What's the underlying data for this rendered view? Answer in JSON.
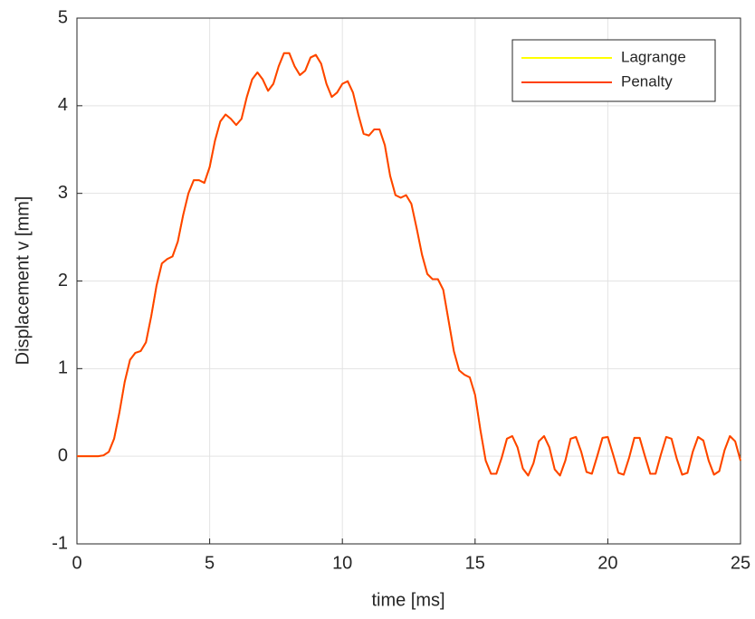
{
  "chart_data": {
    "type": "line",
    "xlabel": "time [ms]",
    "ylabel": "Displacement v [mm]",
    "xlim": [
      0,
      25
    ],
    "ylim": [
      -1,
      5
    ],
    "xticks": [
      0,
      5,
      10,
      15,
      20,
      25
    ],
    "yticks": [
      -1,
      0,
      1,
      2,
      3,
      4,
      5
    ],
    "grid": true,
    "legend": "upper right",
    "x": [
      0,
      0.2,
      0.4,
      0.6,
      0.8,
      1,
      1.2,
      1.4,
      1.6,
      1.8,
      2,
      2.2,
      2.4,
      2.6,
      2.8,
      3,
      3.2,
      3.4,
      3.6,
      3.8,
      4,
      4.2,
      4.4,
      4.6,
      4.8,
      5,
      5.2,
      5.4,
      5.6,
      5.8,
      6,
      6.2,
      6.4,
      6.6,
      6.8,
      7,
      7.2,
      7.4,
      7.6,
      7.8,
      8,
      8.2,
      8.4,
      8.6,
      8.8,
      9,
      9.2,
      9.4,
      9.6,
      9.8,
      10,
      10.2,
      10.4,
      10.6,
      10.8,
      11,
      11.2,
      11.4,
      11.6,
      11.8,
      12,
      12.2,
      12.4,
      12.6,
      12.8,
      13,
      13.2,
      13.4,
      13.6,
      13.8,
      14,
      14.2,
      14.4,
      14.6,
      14.8,
      15,
      15.2,
      15.4,
      15.6,
      15.8,
      16,
      16.2,
      16.4,
      16.6,
      16.8,
      17,
      17.2,
      17.4,
      17.6,
      17.8,
      18,
      18.2,
      18.4,
      18.6,
      18.8,
      19,
      19.2,
      19.4,
      19.6,
      19.8,
      20,
      20.2,
      20.4,
      20.6,
      20.8,
      21,
      21.2,
      21.4,
      21.6,
      21.8,
      22,
      22.2,
      22.4,
      22.6,
      22.8,
      23,
      23.2,
      23.4,
      23.6,
      23.8,
      24,
      24.2,
      24.4,
      24.6,
      24.8,
      25
    ],
    "series": [
      {
        "name": "Lagrange",
        "color": "#ffff00",
        "values": [
          0,
          0,
          0,
          0,
          0,
          0.01,
          0.05,
          0.2,
          0.5,
          0.85,
          1.1,
          1.18,
          1.2,
          1.3,
          1.6,
          1.95,
          2.2,
          2.25,
          2.28,
          2.45,
          2.75,
          3.0,
          3.15,
          3.15,
          3.12,
          3.3,
          3.6,
          3.82,
          3.9,
          3.85,
          3.78,
          3.85,
          4.1,
          4.3,
          4.38,
          4.3,
          4.17,
          4.25,
          4.45,
          4.6,
          4.6,
          4.45,
          4.35,
          4.4,
          4.55,
          4.58,
          4.48,
          4.25,
          4.1,
          4.15,
          4.25,
          4.28,
          4.15,
          3.9,
          3.68,
          3.66,
          3.73,
          3.73,
          3.55,
          3.2,
          2.98,
          2.95,
          2.98,
          2.88,
          2.6,
          2.3,
          2.08,
          2.02,
          2.02,
          1.9,
          1.55,
          1.2,
          0.98,
          0.93,
          0.9,
          0.7,
          0.3,
          -0.05,
          -0.2,
          -0.2,
          -0.02,
          0.2,
          0.23,
          0.1,
          -0.14,
          -0.22,
          -0.08,
          0.17,
          0.23,
          0.1,
          -0.15,
          -0.22,
          -0.05,
          0.2,
          0.22,
          0.05,
          -0.18,
          -0.2,
          0,
          0.21,
          0.22,
          0.02,
          -0.19,
          -0.21,
          -0.02,
          0.21,
          0.21,
          0,
          -0.2,
          -0.2,
          0.02,
          0.22,
          0.2,
          -0.03,
          -0.21,
          -0.19,
          0.05,
          0.22,
          0.18,
          -0.05,
          -0.21,
          -0.17,
          0.07,
          0.23,
          0.17,
          -0.05
        ]
      },
      {
        "name": "Penalty",
        "color": "#ff4000",
        "values": [
          0,
          0,
          0,
          0,
          0,
          0.01,
          0.05,
          0.2,
          0.5,
          0.85,
          1.1,
          1.18,
          1.2,
          1.3,
          1.6,
          1.95,
          2.2,
          2.25,
          2.28,
          2.45,
          2.75,
          3.0,
          3.15,
          3.15,
          3.12,
          3.3,
          3.6,
          3.82,
          3.9,
          3.85,
          3.78,
          3.85,
          4.1,
          4.3,
          4.38,
          4.3,
          4.17,
          4.25,
          4.45,
          4.6,
          4.6,
          4.45,
          4.35,
          4.4,
          4.55,
          4.58,
          4.48,
          4.25,
          4.1,
          4.15,
          4.25,
          4.28,
          4.15,
          3.9,
          3.68,
          3.66,
          3.73,
          3.73,
          3.55,
          3.2,
          2.98,
          2.95,
          2.98,
          2.88,
          2.6,
          2.3,
          2.08,
          2.02,
          2.02,
          1.9,
          1.55,
          1.2,
          0.98,
          0.93,
          0.9,
          0.7,
          0.3,
          -0.05,
          -0.2,
          -0.2,
          -0.02,
          0.2,
          0.23,
          0.1,
          -0.14,
          -0.22,
          -0.08,
          0.17,
          0.23,
          0.1,
          -0.15,
          -0.22,
          -0.05,
          0.2,
          0.22,
          0.05,
          -0.18,
          -0.2,
          0,
          0.21,
          0.22,
          0.02,
          -0.19,
          -0.21,
          -0.02,
          0.21,
          0.21,
          0,
          -0.2,
          -0.2,
          0.02,
          0.22,
          0.2,
          -0.03,
          -0.21,
          -0.19,
          0.05,
          0.22,
          0.18,
          -0.05,
          -0.21,
          -0.17,
          0.07,
          0.23,
          0.17,
          -0.05
        ]
      }
    ]
  }
}
